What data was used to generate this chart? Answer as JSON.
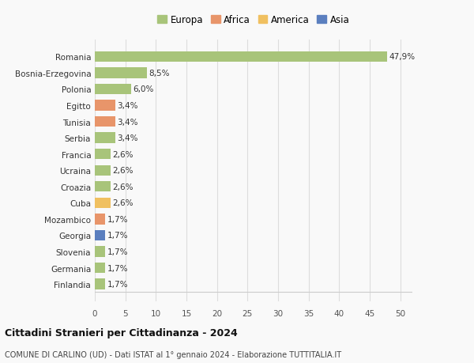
{
  "categories": [
    "Finlandia",
    "Germania",
    "Slovenia",
    "Georgia",
    "Mozambico",
    "Cuba",
    "Croazia",
    "Ucraina",
    "Francia",
    "Serbia",
    "Tunisia",
    "Egitto",
    "Polonia",
    "Bosnia-Erzegovina",
    "Romania"
  ],
  "values": [
    1.7,
    1.7,
    1.7,
    1.7,
    1.7,
    2.6,
    2.6,
    2.6,
    2.6,
    3.4,
    3.4,
    3.4,
    6.0,
    8.5,
    47.9
  ],
  "labels": [
    "1,7%",
    "1,7%",
    "1,7%",
    "1,7%",
    "1,7%",
    "2,6%",
    "2,6%",
    "2,6%",
    "2,6%",
    "3,4%",
    "3,4%",
    "3,4%",
    "6,0%",
    "8,5%",
    "47,9%"
  ],
  "colors": [
    "#a8c47a",
    "#a8c47a",
    "#a8c47a",
    "#5b7fbf",
    "#e8956a",
    "#f0c060",
    "#a8c47a",
    "#a8c47a",
    "#a8c47a",
    "#a8c47a",
    "#e8956a",
    "#e8956a",
    "#a8c47a",
    "#a8c47a",
    "#a8c47a"
  ],
  "legend_labels": [
    "Europa",
    "Africa",
    "America",
    "Asia"
  ],
  "legend_colors": [
    "#a8c47a",
    "#e8956a",
    "#f0c060",
    "#5b7fbf"
  ],
  "title1": "Cittadini Stranieri per Cittadinanza - 2024",
  "title2": "COMUNE DI CARLINO (UD) - Dati ISTAT al 1° gennaio 2024 - Elaborazione TUTTITALIA.IT",
  "xlim": [
    0,
    52
  ],
  "xticks": [
    0,
    5,
    10,
    15,
    20,
    25,
    30,
    35,
    40,
    45,
    50
  ],
  "background_color": "#f9f9f9",
  "grid_color": "#dddddd",
  "bar_height": 0.65
}
